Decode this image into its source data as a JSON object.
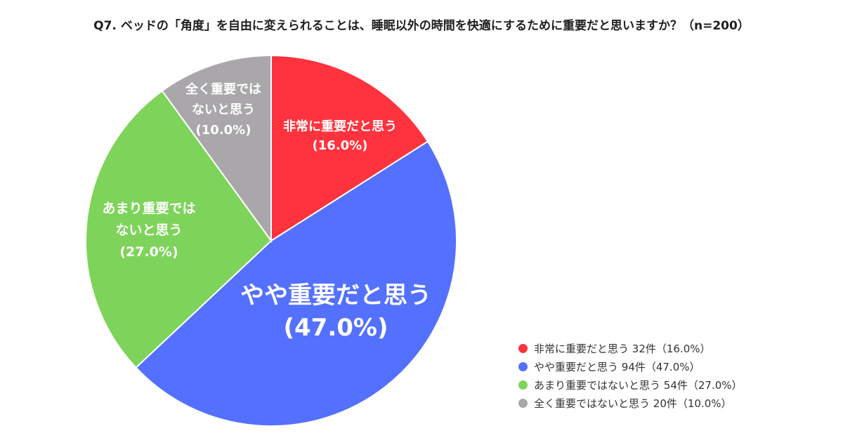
{
  "chart_data": {
    "type": "pie",
    "title": "Q7. ベッドの「角度」を自由に変えられることは、睡眠以外の時間を快適にするために重要だと思いますか？（n=200）",
    "slices": [
      {
        "label": "非常に重要だと思う",
        "value": 16.0,
        "count": 32,
        "count_text": "32件",
        "percent_text": "(16.0%)",
        "legend_percent_text": "（16.0%）",
        "color": "#ff333d",
        "label_lines": [
          "非常に重要だと思う"
        ]
      },
      {
        "label": "やや重要だと思う",
        "value": 47.0,
        "count": 94,
        "count_text": "94件",
        "percent_text": "(47.0%)",
        "legend_percent_text": "（47.0%）",
        "color": "#5470ff",
        "label_lines": [
          "やや重要だと思う"
        ]
      },
      {
        "label": "あまり重要ではないと思う",
        "value": 27.0,
        "count": 54,
        "count_text": "54件",
        "percent_text": "(27.0%)",
        "legend_percent_text": "（27.0%）",
        "color": "#7ed45a",
        "label_lines": [
          "あまり重要では",
          "ないと思う"
        ]
      },
      {
        "label": "全く重要ではないと思う",
        "value": 10.0,
        "count": 20,
        "count_text": "20件",
        "percent_text": "(10.0%)",
        "legend_percent_text": "（10.0%）",
        "color": "#a9a7aa",
        "label_lines": [
          "全く重要では",
          "ないと思う"
        ]
      }
    ],
    "legend_position": "bottom-right",
    "start_angle": "12 o'clock",
    "direction": "clockwise"
  }
}
